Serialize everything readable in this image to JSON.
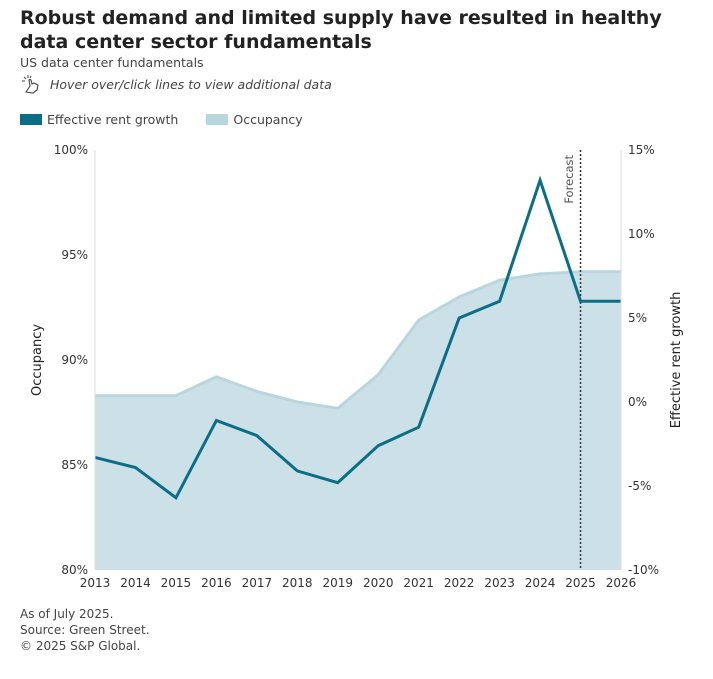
{
  "title": "Robust demand and limited supply have resulted in healthy data center sector fundamentals",
  "subtitle": "US data center fundamentals",
  "hint": {
    "icon": "hand-pointer-click-icon",
    "text": "Hover over/click lines to view additional data"
  },
  "legend": [
    {
      "label": "Effective rent growth",
      "color": "#0b6e85"
    },
    {
      "label": "Occupancy",
      "color": "#b9d6df"
    }
  ],
  "footer": [
    "As of July 2025.",
    "Source: Green Street.",
    "© 2025 S&P Global."
  ],
  "chart_data": {
    "type": "line+area",
    "x": [
      2013,
      2014,
      2015,
      2016,
      2017,
      2018,
      2019,
      2020,
      2021,
      2022,
      2023,
      2024,
      2025,
      2026
    ],
    "series": [
      {
        "name": "Occupancy",
        "type": "area",
        "axis": "left",
        "color": "#b9d6df",
        "values": [
          88.3,
          88.3,
          88.3,
          89.2,
          88.5,
          88.0,
          87.7,
          89.3,
          91.9,
          93.0,
          93.8,
          94.1,
          94.2,
          94.2
        ]
      },
      {
        "name": "Effective rent growth",
        "type": "line",
        "axis": "right",
        "color": "#0b6e85",
        "values": [
          -3.3,
          -3.9,
          -5.7,
          -1.1,
          -2.0,
          -4.1,
          -4.8,
          -2.6,
          -1.5,
          5.0,
          6.0,
          13.2,
          6.0,
          6.0
        ]
      }
    ],
    "xlim": [
      2013,
      2026
    ],
    "ylabel_left": "Occupancy",
    "ylim_left": [
      80,
      100
    ],
    "yticks_left": [
      "80%",
      "85%",
      "90%",
      "95%",
      "100%"
    ],
    "ylabel_right": "Effective rent growth",
    "ylim_right": [
      -10,
      15
    ],
    "yticks_right": [
      "-10%",
      "-5%",
      "0%",
      "5%",
      "10%",
      "15%"
    ],
    "xticks": [
      "2013",
      "2014",
      "2015",
      "2016",
      "2017",
      "2018",
      "2019",
      "2020",
      "2021",
      "2022",
      "2023",
      "2024",
      "2025",
      "2026"
    ],
    "annotation": {
      "label": "Forecast",
      "x": 2025
    },
    "grid": false,
    "legend_position": "top-left"
  }
}
